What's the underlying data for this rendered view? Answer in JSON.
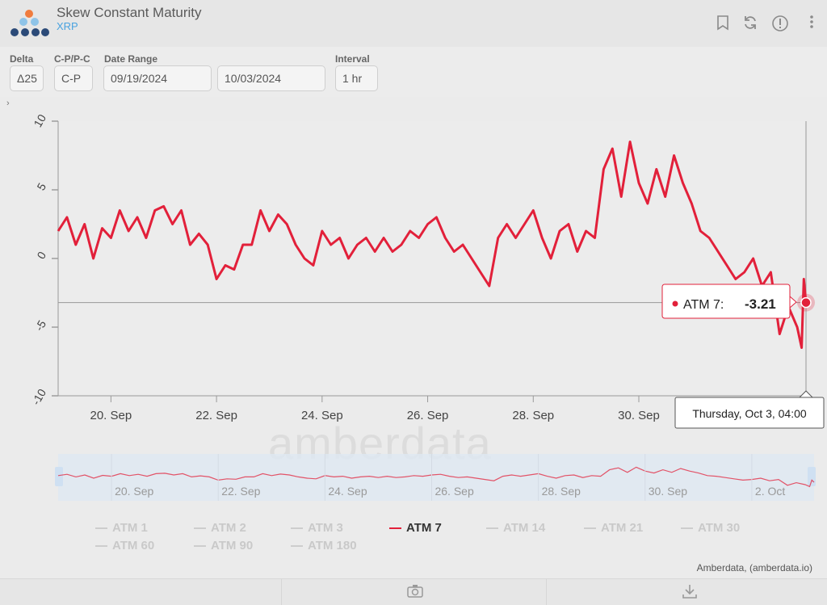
{
  "header": {
    "title": "Skew Constant Maturity",
    "subtitle": "XRP",
    "icons": [
      "bookmark-icon",
      "refresh-icon",
      "info-icon",
      "more-vertical-icon"
    ]
  },
  "controls": {
    "delta_label": "Delta",
    "delta_value": "Δ25",
    "cp_label": "C-P/P-C",
    "cp_value": "C-P",
    "date_range_label": "Date Range",
    "date_from": "09/19/2024",
    "date_to": "10/03/2024",
    "interval_label": "Interval",
    "interval_value": "1 hr"
  },
  "watermark": "amberdata",
  "credits": "Amberdata, (amberdata.io)",
  "tooltip": {
    "series": "ATM 7:",
    "value": "-3.21",
    "date_label": "Thursday, Oct 3, 04:00"
  },
  "legend": [
    {
      "label": "ATM 1",
      "active": false
    },
    {
      "label": "ATM 2",
      "active": false
    },
    {
      "label": "ATM 3",
      "active": false
    },
    {
      "label": "ATM 7",
      "active": true
    },
    {
      "label": "ATM 14",
      "active": false
    },
    {
      "label": "ATM 21",
      "active": false
    },
    {
      "label": "ATM 30",
      "active": false
    },
    {
      "label": "ATM 60",
      "active": false
    },
    {
      "label": "ATM 90",
      "active": false
    },
    {
      "label": "ATM 180",
      "active": false
    }
  ],
  "colors": {
    "series": "#e2203a",
    "navigator_fill": "#dfe8f3",
    "inactive_legend": "#c9c9c9"
  },
  "chart_data": {
    "type": "line",
    "title": "",
    "xlabel": "",
    "ylabel": "",
    "ylim": [
      -10,
      10
    ],
    "yticks": [
      10,
      5,
      0,
      -5,
      -10
    ],
    "xticks": [
      "20. Sep",
      "22. Sep",
      "24. Sep",
      "26. Sep",
      "28. Sep",
      "30. Sep"
    ],
    "navigator_xticks": [
      "20. Sep",
      "22. Sep",
      "24. Sep",
      "26. Sep",
      "28. Sep",
      "30. Sep",
      "2. Oct"
    ],
    "crosshair_value": -3.21,
    "series": [
      {
        "name": "ATM 7",
        "points": [
          [
            "2024-09-19 00:00",
            2.0
          ],
          [
            "2024-09-19 04:00",
            3.0
          ],
          [
            "2024-09-19 08:00",
            1.0
          ],
          [
            "2024-09-19 12:00",
            2.5
          ],
          [
            "2024-09-19 16:00",
            0.0
          ],
          [
            "2024-09-19 20:00",
            2.2
          ],
          [
            "2024-09-20 00:00",
            1.5
          ],
          [
            "2024-09-20 04:00",
            3.5
          ],
          [
            "2024-09-20 08:00",
            2.0
          ],
          [
            "2024-09-20 12:00",
            3.0
          ],
          [
            "2024-09-20 16:00",
            1.5
          ],
          [
            "2024-09-20 20:00",
            3.5
          ],
          [
            "2024-09-21 00:00",
            3.8
          ],
          [
            "2024-09-21 04:00",
            2.5
          ],
          [
            "2024-09-21 08:00",
            3.5
          ],
          [
            "2024-09-21 12:00",
            1.0
          ],
          [
            "2024-09-21 16:00",
            1.8
          ],
          [
            "2024-09-21 20:00",
            1.0
          ],
          [
            "2024-09-22 00:00",
            -1.5
          ],
          [
            "2024-09-22 04:00",
            -0.5
          ],
          [
            "2024-09-22 08:00",
            -0.8
          ],
          [
            "2024-09-22 12:00",
            1.0
          ],
          [
            "2024-09-22 16:00",
            1.0
          ],
          [
            "2024-09-22 20:00",
            3.5
          ],
          [
            "2024-09-23 00:00",
            2.0
          ],
          [
            "2024-09-23 04:00",
            3.2
          ],
          [
            "2024-09-23 08:00",
            2.5
          ],
          [
            "2024-09-23 12:00",
            1.0
          ],
          [
            "2024-09-23 16:00",
            0.0
          ],
          [
            "2024-09-23 20:00",
            -0.5
          ],
          [
            "2024-09-24 00:00",
            2.0
          ],
          [
            "2024-09-24 04:00",
            1.0
          ],
          [
            "2024-09-24 08:00",
            1.5
          ],
          [
            "2024-09-24 12:00",
            0.0
          ],
          [
            "2024-09-24 16:00",
            1.0
          ],
          [
            "2024-09-24 20:00",
            1.5
          ],
          [
            "2024-09-25 00:00",
            0.5
          ],
          [
            "2024-09-25 04:00",
            1.5
          ],
          [
            "2024-09-25 08:00",
            0.5
          ],
          [
            "2024-09-25 12:00",
            1.0
          ],
          [
            "2024-09-25 16:00",
            2.0
          ],
          [
            "2024-09-25 20:00",
            1.5
          ],
          [
            "2024-09-26 00:00",
            2.5
          ],
          [
            "2024-09-26 04:00",
            3.0
          ],
          [
            "2024-09-26 08:00",
            1.5
          ],
          [
            "2024-09-26 12:00",
            0.5
          ],
          [
            "2024-09-26 16:00",
            1.0
          ],
          [
            "2024-09-26 20:00",
            0.0
          ],
          [
            "2024-09-27 00:00",
            -1.0
          ],
          [
            "2024-09-27 04:00",
            -2.0
          ],
          [
            "2024-09-27 08:00",
            1.5
          ],
          [
            "2024-09-27 12:00",
            2.5
          ],
          [
            "2024-09-27 16:00",
            1.5
          ],
          [
            "2024-09-27 20:00",
            2.5
          ],
          [
            "2024-09-28 00:00",
            3.5
          ],
          [
            "2024-09-28 04:00",
            1.5
          ],
          [
            "2024-09-28 08:00",
            0.0
          ],
          [
            "2024-09-28 12:00",
            2.0
          ],
          [
            "2024-09-28 16:00",
            2.5
          ],
          [
            "2024-09-28 20:00",
            0.5
          ],
          [
            "2024-09-29 00:00",
            2.0
          ],
          [
            "2024-09-29 04:00",
            1.5
          ],
          [
            "2024-09-29 08:00",
            6.5
          ],
          [
            "2024-09-29 12:00",
            8.0
          ],
          [
            "2024-09-29 16:00",
            4.5
          ],
          [
            "2024-09-29 20:00",
            8.5
          ],
          [
            "2024-09-30 00:00",
            5.5
          ],
          [
            "2024-09-30 04:00",
            4.0
          ],
          [
            "2024-09-30 08:00",
            6.5
          ],
          [
            "2024-09-30 12:00",
            4.5
          ],
          [
            "2024-09-30 16:00",
            7.5
          ],
          [
            "2024-09-30 20:00",
            5.5
          ],
          [
            "2024-10-01 00:00",
            4.0
          ],
          [
            "2024-10-01 04:00",
            2.0
          ],
          [
            "2024-10-01 08:00",
            1.5
          ],
          [
            "2024-10-01 12:00",
            0.5
          ],
          [
            "2024-10-01 16:00",
            -0.5
          ],
          [
            "2024-10-01 20:00",
            -1.5
          ],
          [
            "2024-10-02 00:00",
            -1.0
          ],
          [
            "2024-10-02 04:00",
            0.0
          ],
          [
            "2024-10-02 08:00",
            -2.0
          ],
          [
            "2024-10-02 12:00",
            -1.0
          ],
          [
            "2024-10-02 16:00",
            -5.5
          ],
          [
            "2024-10-02 20:00",
            -3.5
          ],
          [
            "2024-10-03 00:00",
            -5.0
          ],
          [
            "2024-10-03 02:00",
            -6.5
          ],
          [
            "2024-10-03 03:00",
            -1.5
          ],
          [
            "2024-10-03 04:00",
            -3.21
          ]
        ]
      }
    ]
  }
}
